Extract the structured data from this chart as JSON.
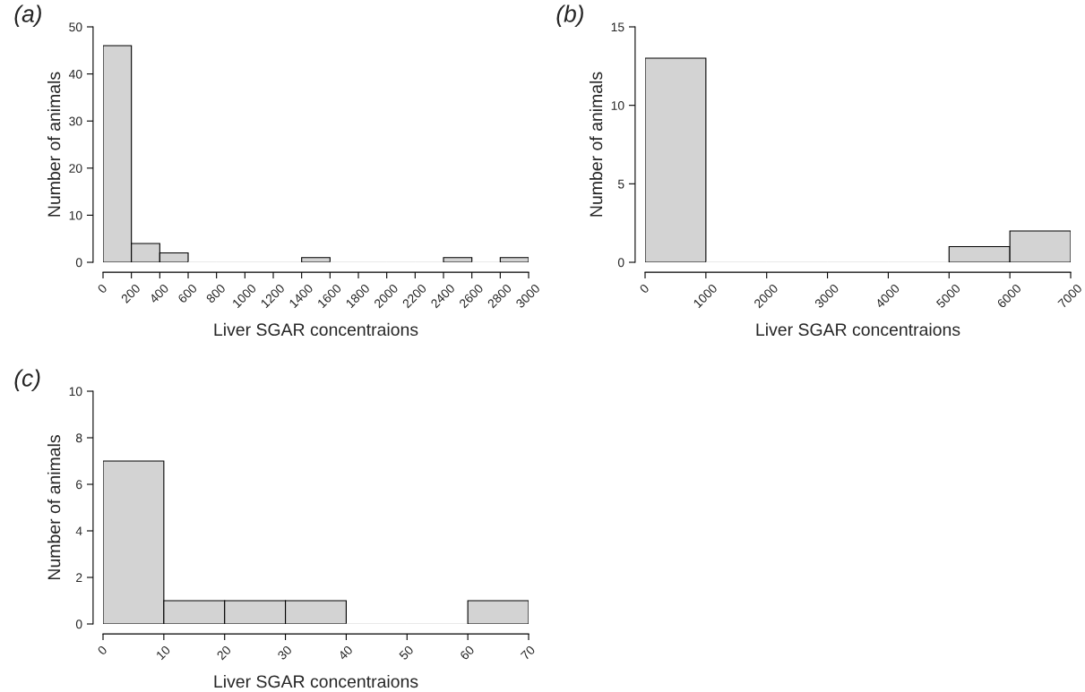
{
  "chart_data": [
    {
      "type": "histogram",
      "title": "(a)",
      "xlabel": "Liver SGAR concentraions",
      "ylabel": "Number of animals",
      "color": "#d3d3d3",
      "bins": [
        0,
        200,
        400,
        600,
        800,
        1000,
        1200,
        1400,
        1600,
        1800,
        2000,
        2200,
        2400,
        2600,
        2800,
        3000
      ],
      "values": [
        46,
        4,
        2,
        0,
        0,
        0,
        0,
        1,
        0,
        0,
        0,
        0,
        1,
        0,
        1
      ],
      "xlim": [
        0,
        3000
      ],
      "xticks": [
        0,
        200,
        400,
        600,
        800,
        1000,
        1200,
        1400,
        1600,
        1800,
        2000,
        2200,
        2400,
        2600,
        2800,
        3000
      ],
      "ylim": [
        0,
        50
      ],
      "yticks": [
        0,
        10,
        20,
        30,
        40,
        50
      ],
      "grid": false,
      "legend": false
    },
    {
      "type": "histogram",
      "title": "(b)",
      "xlabel": "Liver SGAR concentraions",
      "ylabel": "Number of animals",
      "color": "#d3d3d3",
      "bins": [
        0,
        1000,
        2000,
        3000,
        4000,
        5000,
        6000,
        7000
      ],
      "values": [
        13,
        0,
        0,
        0,
        0,
        1,
        2
      ],
      "xlim": [
        0,
        7000
      ],
      "xticks": [
        0,
        1000,
        2000,
        3000,
        4000,
        5000,
        6000,
        7000
      ],
      "ylim": [
        0,
        15
      ],
      "yticks": [
        0,
        5,
        10,
        15
      ],
      "grid": false,
      "legend": false
    },
    {
      "type": "histogram",
      "title": "(c)",
      "xlabel": "Liver SGAR concentraions",
      "ylabel": "Number of animals",
      "color": "#d3d3d3",
      "bins": [
        0,
        10,
        20,
        30,
        40,
        50,
        60,
        70
      ],
      "values": [
        7,
        1,
        1,
        1,
        0,
        0,
        1
      ],
      "xlim": [
        0,
        70
      ],
      "xticks": [
        0,
        10,
        20,
        30,
        40,
        50,
        60,
        70
      ],
      "ylim": [
        0,
        10
      ],
      "yticks": [
        0,
        2,
        4,
        6,
        8,
        10
      ],
      "grid": false,
      "legend": false
    }
  ]
}
